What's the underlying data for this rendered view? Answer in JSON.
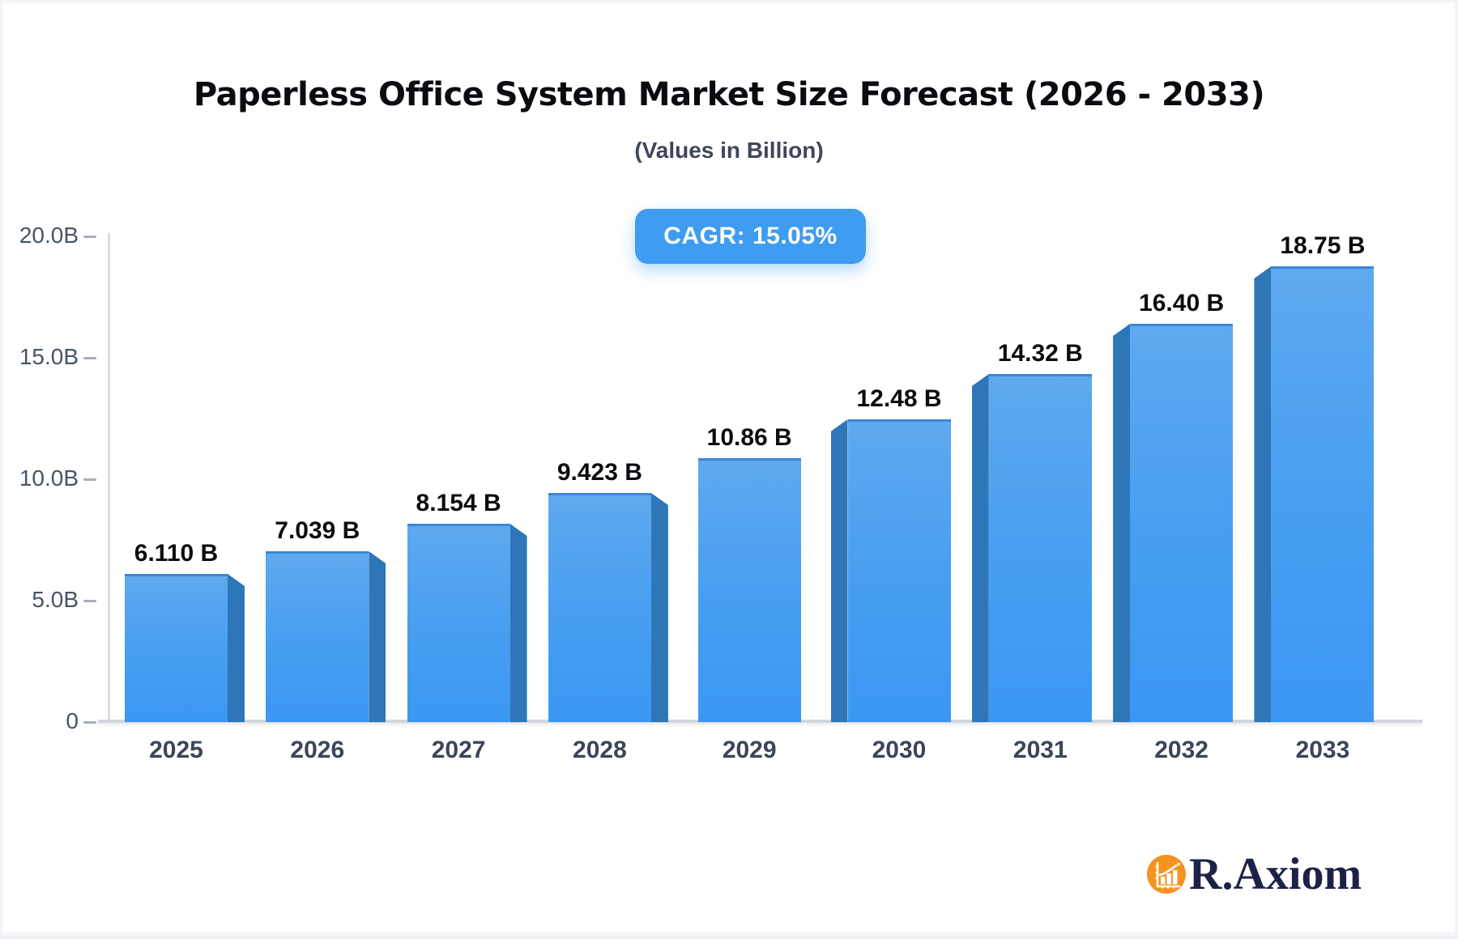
{
  "header": {
    "title": "Paperless Office System Market Size Forecast (2026 - 2033)",
    "subtitle": "(Values in Billion)",
    "cagr_badge": "CAGR: 15.05%"
  },
  "chart_data": {
    "type": "bar",
    "title": "Paperless Office System Market Size Forecast (2026 - 2033)",
    "subtitle": "(Values in Billion)",
    "cagr": "15.05%",
    "categories": [
      "2025",
      "2026",
      "2027",
      "2028",
      "2029",
      "2030",
      "2031",
      "2032",
      "2033"
    ],
    "values": [
      6.11,
      7.039,
      8.154,
      9.423,
      10.86,
      12.48,
      14.32,
      16.4,
      18.75
    ],
    "value_labels": [
      "6.110 B",
      "7.039 B",
      "8.154 B",
      "9.423 B",
      "10.86 B",
      "12.48 B",
      "14.32 B",
      "16.40 B",
      "18.75 B"
    ],
    "ylim": [
      0,
      20
    ],
    "yticks": [
      {
        "value": 0,
        "label": "0"
      },
      {
        "value": 5,
        "label": "5.0B"
      },
      {
        "value": 10,
        "label": "10.0B"
      },
      {
        "value": 15,
        "label": "15.0B"
      },
      {
        "value": 20,
        "label": "20.0B"
      }
    ],
    "grid": false,
    "legend": false,
    "colors": {
      "bar_front_top": "#5fa9ef",
      "bar_front_bottom": "#3b97f2",
      "bar_top_edge": "#3e86d9",
      "bar_side": "#2e76b8",
      "badge_bg": "#3e9cf1",
      "badge_text": "#ffffff",
      "axis_line": "#dbdee5",
      "baseline": "#d2d5dc",
      "tick_label": "#475467",
      "year_label": "#3b455a",
      "value_label": "#0b0c10"
    }
  },
  "logo": {
    "text": "R.Axiom",
    "icon": "bar-chart-growth-icon",
    "circle_color": "#f6921e",
    "text_color": "#1d2147"
  }
}
